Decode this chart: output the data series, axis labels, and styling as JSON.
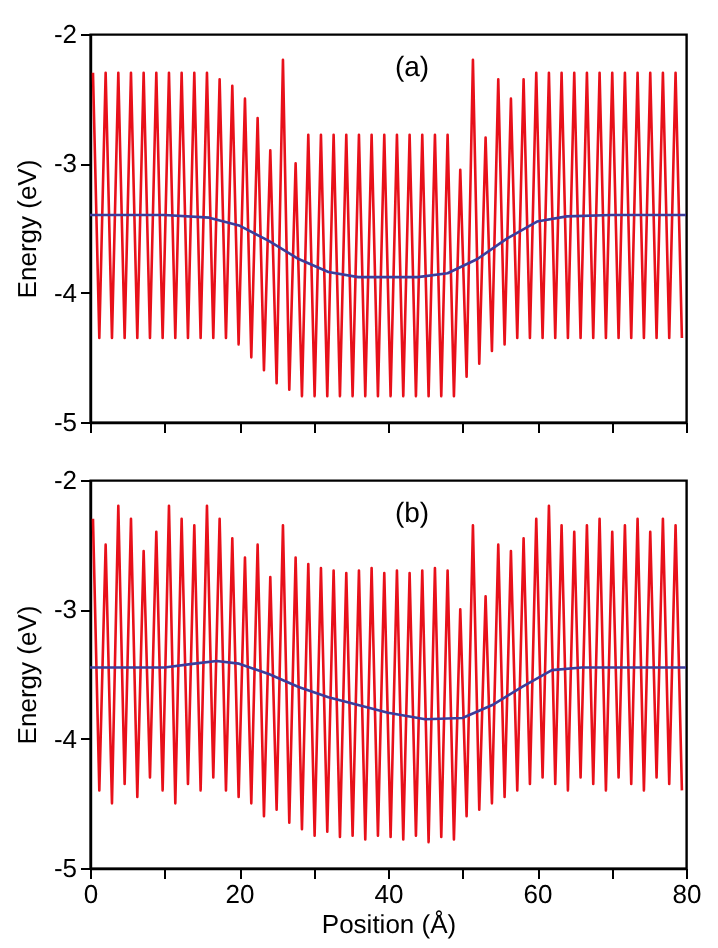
{
  "chart_data": [
    {
      "type": "line",
      "ylabel": "Energy (eV)",
      "annotations": [
        "(a)"
      ],
      "xlim": [
        0,
        80
      ],
      "ylim": [
        -5,
        -2
      ],
      "xticks": [
        0,
        {
          "value": 10,
          "label": null
        },
        20,
        {
          "value": 30,
          "label": null
        },
        40,
        {
          "value": 50,
          "label": null
        },
        60,
        {
          "value": 70,
          "label": null
        },
        80
      ],
      "yticks": [
        -5,
        -4,
        -3,
        -2
      ],
      "tick_labels": "y",
      "grid": false,
      "x": [
        0.4,
        1.25,
        2.1,
        2.95,
        3.8,
        4.65,
        5.5,
        6.35,
        7.2,
        8.05,
        8.9,
        9.75,
        10.6,
        11.45,
        12.3,
        13.15,
        14.0,
        14.85,
        15.7,
        16.55,
        17.4,
        18.25,
        19.1,
        19.95,
        20.8,
        21.65,
        22.5,
        23.35,
        24.2,
        25.05,
        25.9,
        26.75,
        27.6,
        28.45,
        29.3,
        30.15,
        31.0,
        31.85,
        32.7,
        33.55,
        34.4,
        35.25,
        36.1,
        36.95,
        37.8,
        38.65,
        39.5,
        40.35,
        41.2,
        42.05,
        42.9,
        43.75,
        44.6,
        45.45,
        46.3,
        47.15,
        48.0,
        48.85,
        49.7,
        50.55,
        51.4,
        52.25,
        53.1,
        53.95,
        54.8,
        55.65,
        56.5,
        57.35,
        58.2,
        59.05,
        59.9,
        60.75,
        61.6,
        62.45,
        63.3,
        64.15,
        65.0,
        65.85,
        66.7,
        67.55,
        68.4,
        69.25,
        70.1,
        70.95,
        71.8,
        72.65,
        73.5,
        74.35,
        75.2,
        76.05,
        76.9,
        77.75,
        78.6,
        79.45
      ],
      "series": [
        {
          "color": "#e8101a",
          "values": [
            -2.3,
            -4.35,
            -2.3,
            -4.35,
            -2.3,
            -4.35,
            -2.3,
            -4.35,
            -2.3,
            -4.35,
            -2.3,
            -4.35,
            -2.3,
            -4.35,
            -2.3,
            -4.35,
            -2.3,
            -4.35,
            -2.3,
            -4.35,
            -2.35,
            -4.35,
            -2.4,
            -4.4,
            -2.5,
            -4.5,
            -2.65,
            -4.6,
            -2.9,
            -4.7,
            -2.2,
            -4.75,
            -3.0,
            -4.8,
            -2.78,
            -4.8,
            -2.78,
            -4.8,
            -2.78,
            -4.8,
            -2.78,
            -4.8,
            -2.78,
            -4.8,
            -2.78,
            -4.8,
            -2.78,
            -4.8,
            -2.78,
            -4.8,
            -2.78,
            -4.8,
            -2.78,
            -4.8,
            -2.78,
            -4.8,
            -2.78,
            -4.8,
            -3.05,
            -4.65,
            -2.2,
            -4.55,
            -2.8,
            -4.45,
            -2.35,
            -4.4,
            -2.5,
            -4.35,
            -2.35,
            -4.35,
            -2.3,
            -4.35,
            -2.3,
            -4.35,
            -2.3,
            -4.35,
            -2.3,
            -4.35,
            -2.3,
            -4.35,
            -2.3,
            -4.35,
            -2.3,
            -4.35,
            -2.3,
            -4.35,
            -2.3,
            -4.35,
            -2.3,
            -4.35,
            -2.3,
            -4.35,
            -2.3,
            -4.35
          ]
        },
        {
          "color": "#3c3c9c",
          "x": [
            0,
            10,
            16,
            20,
            24,
            28,
            32,
            36,
            44,
            48,
            52,
            56,
            60,
            64,
            70,
            80
          ],
          "values": [
            -3.4,
            -3.4,
            -3.42,
            -3.48,
            -3.6,
            -3.74,
            -3.84,
            -3.88,
            -3.88,
            -3.85,
            -3.74,
            -3.58,
            -3.45,
            -3.41,
            -3.4,
            -3.4
          ]
        }
      ]
    },
    {
      "type": "line",
      "xlabel": "Position (Å)",
      "ylabel": "Energy (eV)",
      "annotations": [
        "(b)"
      ],
      "xlim": [
        0,
        80
      ],
      "ylim": [
        -5,
        -2
      ],
      "xticks": [
        0,
        {
          "value": 10,
          "label": null
        },
        20,
        {
          "value": 30,
          "label": null
        },
        40,
        {
          "value": 50,
          "label": null
        },
        60,
        {
          "value": 70,
          "label": null
        },
        80
      ],
      "yticks": [
        -5,
        -4,
        -3,
        -2
      ],
      "grid": false,
      "x": [
        0.4,
        1.25,
        2.1,
        2.95,
        3.8,
        4.65,
        5.5,
        6.35,
        7.2,
        8.05,
        8.9,
        9.75,
        10.6,
        11.45,
        12.3,
        13.15,
        14.0,
        14.85,
        15.7,
        16.55,
        17.4,
        18.25,
        19.1,
        19.95,
        20.8,
        21.65,
        22.5,
        23.35,
        24.2,
        25.05,
        25.9,
        26.75,
        27.6,
        28.45,
        29.3,
        30.15,
        31.0,
        31.85,
        32.7,
        33.55,
        34.4,
        35.25,
        36.1,
        36.95,
        37.8,
        38.65,
        39.5,
        40.35,
        41.2,
        42.05,
        42.9,
        43.75,
        44.6,
        45.45,
        46.3,
        47.15,
        48.0,
        48.85,
        49.7,
        50.55,
        51.4,
        52.25,
        53.1,
        53.95,
        54.8,
        55.65,
        56.5,
        57.35,
        58.2,
        59.05,
        59.9,
        60.75,
        61.6,
        62.45,
        63.3,
        64.15,
        65.0,
        65.85,
        66.7,
        67.55,
        68.4,
        69.25,
        70.1,
        70.95,
        71.8,
        72.65,
        73.5,
        74.35,
        75.2,
        76.05,
        76.9,
        77.75,
        78.6,
        79.45
      ],
      "series": [
        {
          "color": "#e8101a",
          "values": [
            -2.3,
            -4.4,
            -2.5,
            -4.5,
            -2.2,
            -4.35,
            -2.3,
            -4.45,
            -2.55,
            -4.3,
            -2.4,
            -4.4,
            -2.2,
            -4.5,
            -2.3,
            -4.35,
            -2.35,
            -4.4,
            -2.2,
            -4.3,
            -2.3,
            -4.4,
            -2.45,
            -4.45,
            -2.6,
            -4.5,
            -2.5,
            -4.6,
            -2.75,
            -4.55,
            -2.35,
            -4.65,
            -2.6,
            -4.7,
            -2.65,
            -4.75,
            -2.68,
            -4.72,
            -2.7,
            -4.76,
            -2.72,
            -4.75,
            -2.7,
            -4.78,
            -2.68,
            -4.75,
            -2.72,
            -4.76,
            -2.7,
            -4.78,
            -2.72,
            -4.75,
            -2.7,
            -4.8,
            -2.68,
            -4.76,
            -2.7,
            -4.78,
            -3.0,
            -4.6,
            -2.35,
            -4.55,
            -2.9,
            -4.5,
            -2.5,
            -4.45,
            -2.55,
            -4.4,
            -2.45,
            -4.35,
            -2.3,
            -4.3,
            -2.2,
            -4.35,
            -2.35,
            -4.4,
            -2.4,
            -4.3,
            -2.35,
            -4.35,
            -2.3,
            -4.4,
            -2.4,
            -4.3,
            -2.35,
            -4.35,
            -2.3,
            -4.4,
            -2.4,
            -4.3,
            -2.3,
            -4.35,
            -2.35,
            -4.4
          ]
        },
        {
          "color": "#3c3c9c",
          "x": [
            0,
            10,
            14,
            17,
            20,
            24,
            28,
            32,
            36,
            40,
            45,
            50,
            54,
            58,
            62,
            66,
            72,
            80
          ],
          "values": [
            -3.45,
            -3.45,
            -3.42,
            -3.4,
            -3.42,
            -3.5,
            -3.6,
            -3.68,
            -3.74,
            -3.8,
            -3.85,
            -3.84,
            -3.74,
            -3.6,
            -3.47,
            -3.45,
            -3.45,
            -3.45
          ]
        }
      ]
    }
  ]
}
